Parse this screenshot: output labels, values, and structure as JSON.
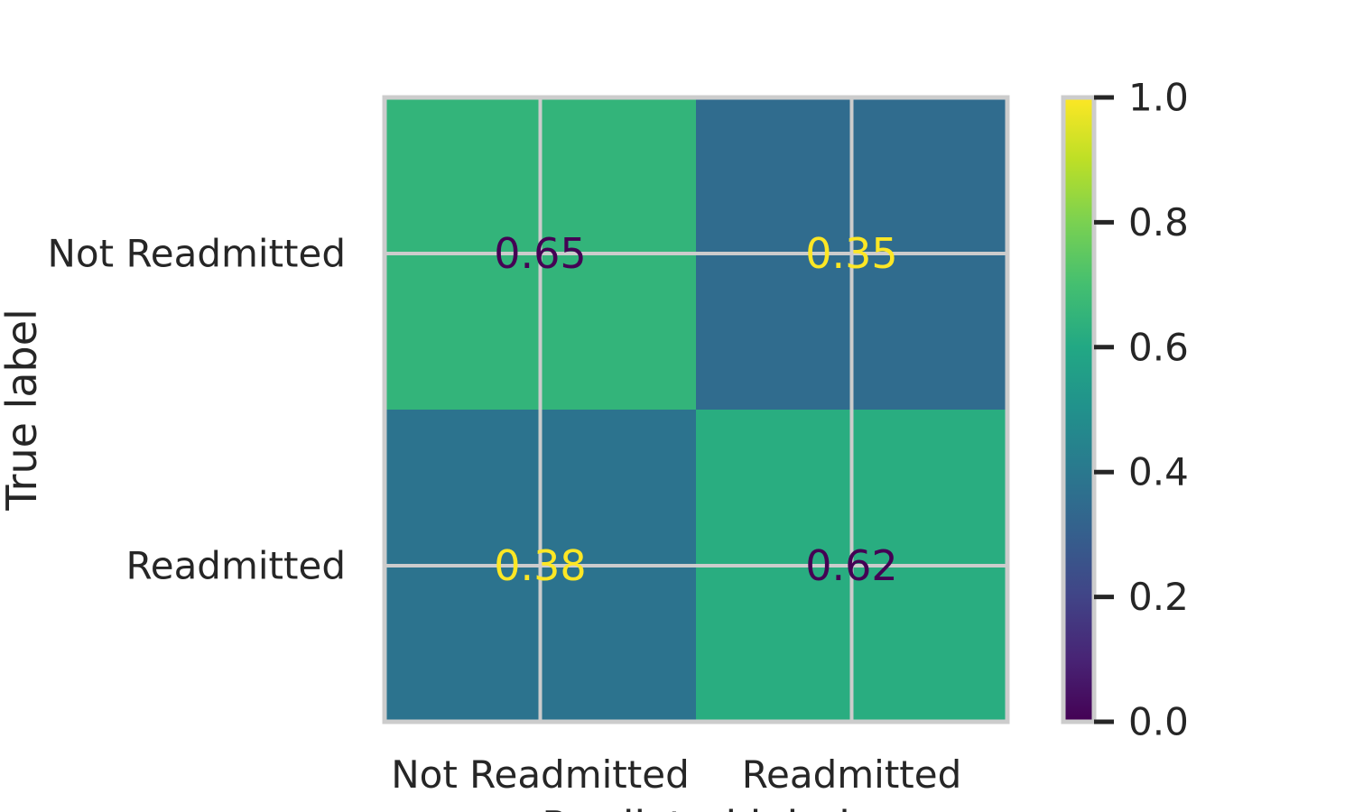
{
  "chart_data": {
    "type": "heatmap",
    "title": "",
    "xlabel": "Predicted label",
    "ylabel": "True label",
    "x_categories": [
      "Not Readmitted",
      "Readmitted"
    ],
    "y_categories": [
      "Not Readmitted",
      "Readmitted"
    ],
    "values": [
      [
        0.65,
        0.35
      ],
      [
        0.38,
        0.62
      ]
    ],
    "cell_labels": [
      [
        "0.65",
        "0.35"
      ],
      [
        "0.38",
        "0.62"
      ]
    ],
    "cell_label_colors": [
      [
        "#440154",
        "#fde725"
      ],
      [
        "#fde725",
        "#440154"
      ]
    ],
    "colormap": "viridis",
    "colorbar": {
      "range": [
        0.0,
        1.0
      ],
      "ticks": [
        0.0,
        0.2,
        0.4,
        0.6,
        0.8,
        1.0
      ],
      "tick_labels": [
        "0.0",
        "0.2",
        "0.4",
        "0.6",
        "0.8",
        "1.0"
      ]
    },
    "grid": true,
    "colors": {
      "text": "#262626",
      "grid": "#cccccc",
      "spine": "#cccccc"
    }
  }
}
